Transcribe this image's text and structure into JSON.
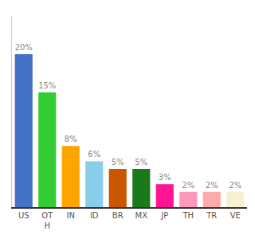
{
  "chart_data": {
    "type": "bar",
    "categories": [
      "US",
      "OT\nH",
      "IN",
      "ID",
      "BR",
      "MX",
      "JP",
      "TH",
      "TR",
      "VE"
    ],
    "values": [
      20,
      15,
      8,
      6,
      5,
      5,
      3,
      2,
      2,
      2
    ],
    "value_labels": [
      "20%",
      "15%",
      "8%",
      "6%",
      "5%",
      "5%",
      "3%",
      "2%",
      "2%",
      "2%"
    ],
    "colors": [
      "#4472c4",
      "#33cc33",
      "#ffa500",
      "#87ceeb",
      "#cc5500",
      "#1a7a1a",
      "#ff1493",
      "#ff99bb",
      "#ffaaaa",
      "#f5f0d0"
    ],
    "ylim": [
      0,
      25
    ],
    "grid": false,
    "data_labels": true,
    "tick_labels": "x"
  }
}
